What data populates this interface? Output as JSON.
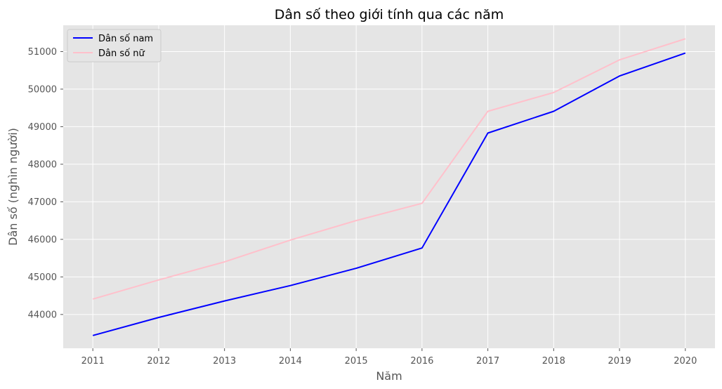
{
  "chart_data": {
    "type": "line",
    "title": "Dân số theo giới tính qua các năm",
    "xlabel": "Năm",
    "ylabel": "Dân số (nghìn người)",
    "x": [
      2011,
      2012,
      2013,
      2014,
      2015,
      2016,
      2017,
      2018,
      2019,
      2020
    ],
    "x_tick_labels": [
      "2011",
      "2012",
      "2013",
      "2014",
      "2015",
      "2016",
      "2017",
      "2018",
      "2019",
      "2020"
    ],
    "y_ticks": [
      44000,
      45000,
      46000,
      47000,
      48000,
      49000,
      50000,
      51000
    ],
    "y_tick_labels": [
      "44000",
      "45000",
      "46000",
      "47000",
      "48000",
      "49000",
      "50000",
      "51000"
    ],
    "xlim": [
      2010.55,
      2020.45
    ],
    "ylim": [
      43100,
      51700
    ],
    "grid": true,
    "legend_position": "top-left",
    "series": [
      {
        "name": "Dân số nam",
        "color": "#0000ff",
        "values": [
          43440,
          43920,
          44360,
          44770,
          45230,
          45770,
          48830,
          49410,
          50350,
          50960
        ]
      },
      {
        "name": "Dân số nữ",
        "color": "#ffc0cb",
        "values": [
          44410,
          44920,
          45400,
          45980,
          46500,
          46960,
          49410,
          49910,
          50780,
          51340
        ]
      }
    ]
  }
}
